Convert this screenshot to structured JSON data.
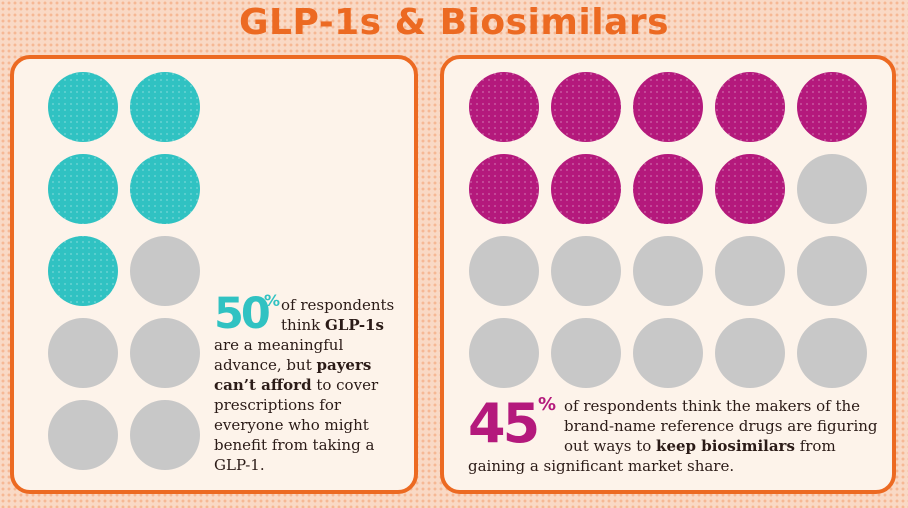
{
  "title": "GLP-1s & Biosimilars",
  "colors": {
    "teal": "#30c2c2",
    "magenta": "#b4197c",
    "gray": "#c8c8c8",
    "orange": "#ec6a22"
  },
  "chart_data": [
    {
      "type": "waffle",
      "total": 10,
      "filled": 5,
      "value_percent": 50,
      "stat_number": "50",
      "stat_symbol": "%",
      "text": {
        "part1": "of respondents think ",
        "bold1": "GLP-1s",
        "part2": " are a meaningful advance, but ",
        "bold2": "payers can’t afford",
        "part3": " to cover prescriptions for everyone who might benefit from taking a GLP-1."
      }
    },
    {
      "type": "waffle",
      "total": 20,
      "filled": 9,
      "value_percent": 45,
      "stat_number": "45",
      "stat_symbol": "%",
      "text": {
        "part1": "of respondents think the makers of the brand-name reference drugs are figuring out ways to ",
        "bold1": "keep biosimilars",
        "part2": " from gaining a significant market share."
      }
    }
  ]
}
